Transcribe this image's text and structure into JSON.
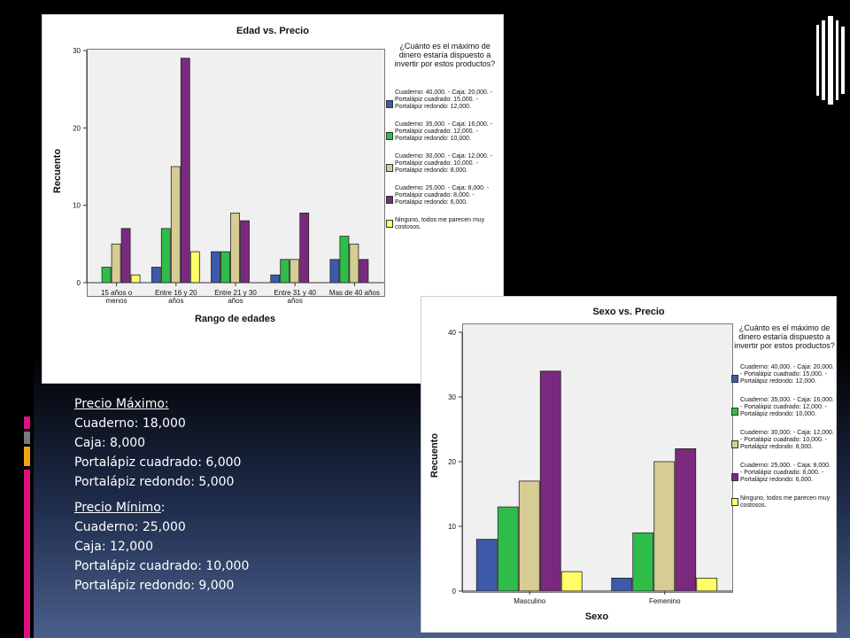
{
  "colors": {
    "series": [
      "#3d5aa8",
      "#2fbd4a",
      "#d8cc95",
      "#7a2a7e",
      "#ffff66"
    ],
    "accent_orange": "#f4a21a",
    "accent_pink": "#e0117f",
    "accent_gray": "#7a7a7a"
  },
  "legend": {
    "title": "¿Cuánto es el máximo de dinero estaría dispuesto a invertir por estos productos?",
    "items": [
      "Cuaderno: 40,000. - Caja: 20,000. - Portalápiz cuadrado: 15,000. - Portalápiz redondo: 12,000.",
      "Cuaderno: 35,000. - Caja: 16,000. - Portalápiz cuadrado: 12,000. - Portalápiz redondo: 10,000.",
      "Cuaderno: 30,000. - Caja: 12,000. - Portalápiz cuadrado: 10,000. - Portalápiz redondo: 8,000.",
      "Cuaderno: 25,000. - Caja: 8,000. - Portalápiz cuadrado: 8,000. - Portalápiz redondo: 6,000.",
      "Ninguno, todos me parecen muy costosos."
    ]
  },
  "chart_data": [
    {
      "type": "bar",
      "title": "Edad vs. Precio",
      "xlabel": "Rango de edades",
      "ylabel": "Recuento",
      "ylim": [
        0,
        30
      ],
      "yticks": [
        0,
        10,
        20,
        30
      ],
      "categories": [
        "15 años o menos",
        "Entre 16 y 20 años",
        "Entre 21 y 30 años",
        "Entre 31 y 40 años",
        "Mas de 40 años"
      ],
      "series": [
        {
          "name": "Cuaderno: 40,000. - Caja: 20,000. - Portalápiz cuadrado: 15,000. - Portalápiz redondo: 12,000.",
          "values": [
            0,
            2,
            4,
            1,
            3
          ]
        },
        {
          "name": "Cuaderno: 35,000. - Caja: 16,000. - Portalápiz cuadrado: 12,000. - Portalápiz redondo: 10,000.",
          "values": [
            2,
            7,
            4,
            3,
            6
          ]
        },
        {
          "name": "Cuaderno: 30,000. - Caja: 12,000. - Portalápiz cuadrado: 10,000. - Portalápiz redondo: 8,000.",
          "values": [
            5,
            15,
            9,
            3,
            5
          ]
        },
        {
          "name": "Cuaderno: 25,000. - Caja: 8,000. - Portalápiz cuadrado: 8,000. - Portalápiz redondo: 6,000.",
          "values": [
            7,
            29,
            8,
            9,
            3
          ]
        },
        {
          "name": "Ninguno, todos me parecen muy costosos.",
          "values": [
            1,
            4,
            0,
            0,
            0
          ]
        }
      ],
      "grid": false,
      "legend_position": "right"
    },
    {
      "type": "bar",
      "title": "Sexo vs. Precio",
      "xlabel": "Sexo",
      "ylabel": "Recuento",
      "ylim": [
        0,
        40
      ],
      "yticks": [
        0,
        10,
        20,
        30,
        40
      ],
      "categories": [
        "Masculino",
        "Femenino"
      ],
      "series": [
        {
          "name": "Cuaderno: 40,000. - Caja: 20,000. - Portalápiz cuadrado: 15,000. - Portalápiz redondo: 12,000.",
          "values": [
            8,
            2
          ]
        },
        {
          "name": "Cuaderno: 35,000. - Caja: 16,000. - Portalápiz cuadrado: 12,000. - Portalápiz redondo: 10,000.",
          "values": [
            13,
            9
          ]
        },
        {
          "name": "Cuaderno: 30,000. - Caja: 12,000. - Portalápiz cuadrado: 10,000. - Portalápiz redondo: 8,000.",
          "values": [
            17,
            20
          ]
        },
        {
          "name": "Cuaderno: 25,000. - Caja: 8,000. - Portalápiz cuadrado: 8,000. - Portalápiz redondo: 6,000.",
          "values": [
            34,
            22
          ]
        },
        {
          "name": "Ninguno, todos me parecen muy costosos.",
          "values": [
            3,
            2
          ]
        }
      ],
      "grid": false,
      "legend_position": "right"
    }
  ],
  "text_block": {
    "max_heading": "Precio Máximo:",
    "max_lines": [
      "Cuaderno: 18,000",
      "Caja: 8,000",
      "Portalápiz cuadrado: 6,000",
      "Portalápiz redondo: 5,000"
    ],
    "min_heading": "Precio Mínimo",
    "min_lines": [
      "Cuaderno: 25,000",
      "Caja: 12,000",
      "Portalápiz cuadrado: 10,000",
      "Portalápiz redondo: 9,000"
    ]
  }
}
